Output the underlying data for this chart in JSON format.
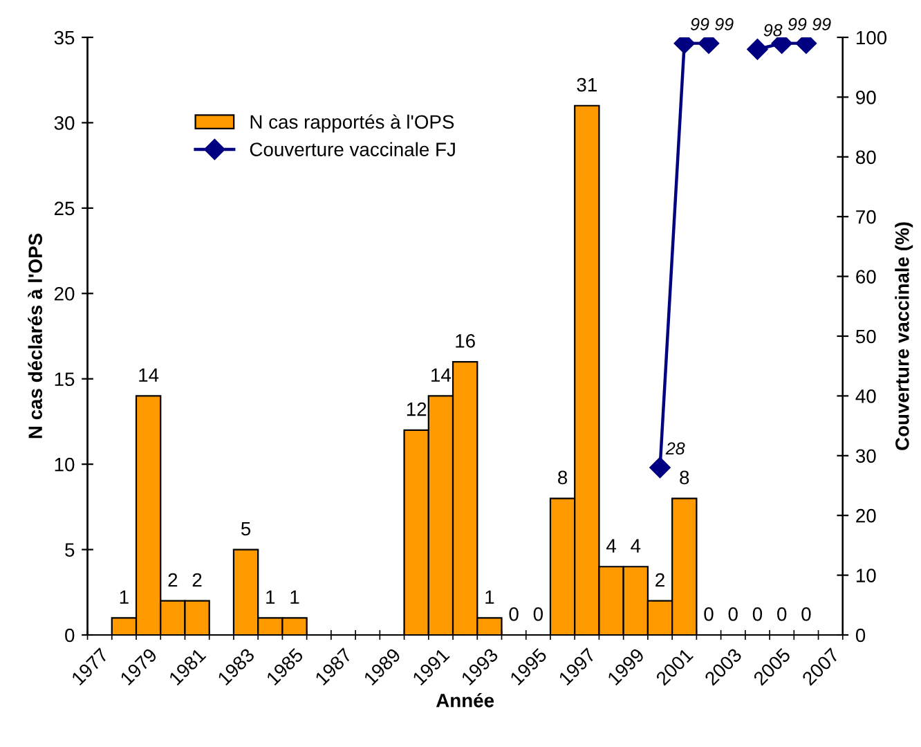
{
  "chart_data": {
    "type": "bar",
    "xlabel": "Année",
    "ylabel": "N cas déclarés à l'OPS",
    "y2label": "Couverture vaccinale (%)",
    "categories": [
      "1977",
      null,
      "1979",
      null,
      "1981",
      null,
      "1983",
      null,
      "1985",
      null,
      "1987",
      null,
      "1989",
      null,
      "1991",
      null,
      "1993",
      null,
      "1995",
      null,
      "1997",
      null,
      "1999",
      null,
      "2001",
      null,
      "2003",
      null,
      "2005",
      null,
      "2007"
    ],
    "series": [
      {
        "name": "N cas rapportés à l'OPS",
        "color": "#ff9900",
        "values": [
          null,
          1,
          14,
          2,
          2,
          null,
          5,
          1,
          1,
          null,
          null,
          null,
          null,
          12,
          14,
          16,
          1,
          0,
          0,
          8,
          31,
          4,
          4,
          2,
          8,
          0,
          0,
          0,
          0,
          0,
          null
        ]
      },
      {
        "name": "Couverture vaccinale FJ",
        "type": "line",
        "axis": "y2",
        "color": "#000080",
        "marker": "diamond",
        "values": [
          null,
          null,
          null,
          null,
          null,
          null,
          null,
          null,
          null,
          null,
          null,
          null,
          null,
          null,
          null,
          null,
          null,
          null,
          null,
          null,
          null,
          null,
          null,
          28,
          99,
          99,
          null,
          98,
          99,
          99,
          null
        ]
      }
    ],
    "ylim": [
      0,
      35
    ],
    "yticks": [
      0,
      5,
      10,
      15,
      20,
      25,
      30,
      35
    ],
    "y2lim": [
      0,
      100
    ],
    "y2ticks": [
      0,
      10,
      20,
      30,
      40,
      50,
      60,
      70,
      80,
      90,
      100
    ],
    "data_labels": true,
    "grid": false,
    "legend": "top left"
  }
}
